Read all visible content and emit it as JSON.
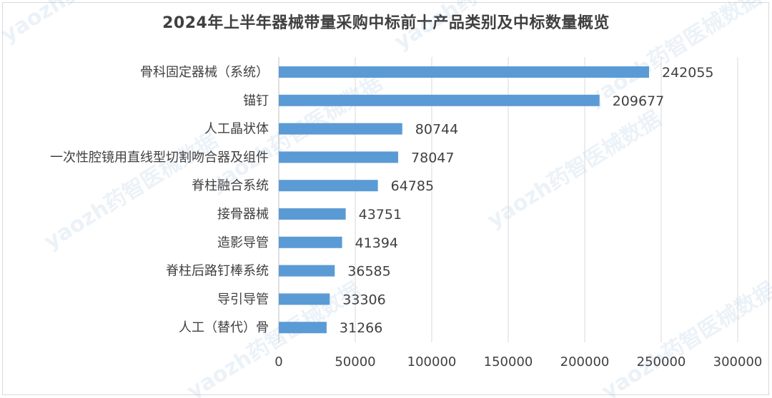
{
  "chart_data": {
    "type": "bar",
    "orientation": "horizontal",
    "title": "2024年上半年器械带量采购中标前十产品类别及中标数量概览",
    "categories": [
      "骨科固定器械（系统）",
      "锚钉",
      "人工晶状体",
      "一次性腔镜用直线型切割吻合器及组件",
      "脊柱融合系统",
      "接骨器械",
      "造影导管",
      "脊柱后路钉棒系统",
      "导引导管",
      "人工（替代）骨"
    ],
    "values": [
      242055,
      209677,
      80744,
      78047,
      64785,
      43751,
      41394,
      36585,
      33306,
      31266
    ],
    "xlim": [
      0,
      300000
    ],
    "xticks": [
      0,
      50000,
      100000,
      150000,
      200000,
      250000,
      300000
    ],
    "grid": true,
    "bar_color": "#5b9bd5",
    "watermark": "yaozh药智医械数据"
  }
}
